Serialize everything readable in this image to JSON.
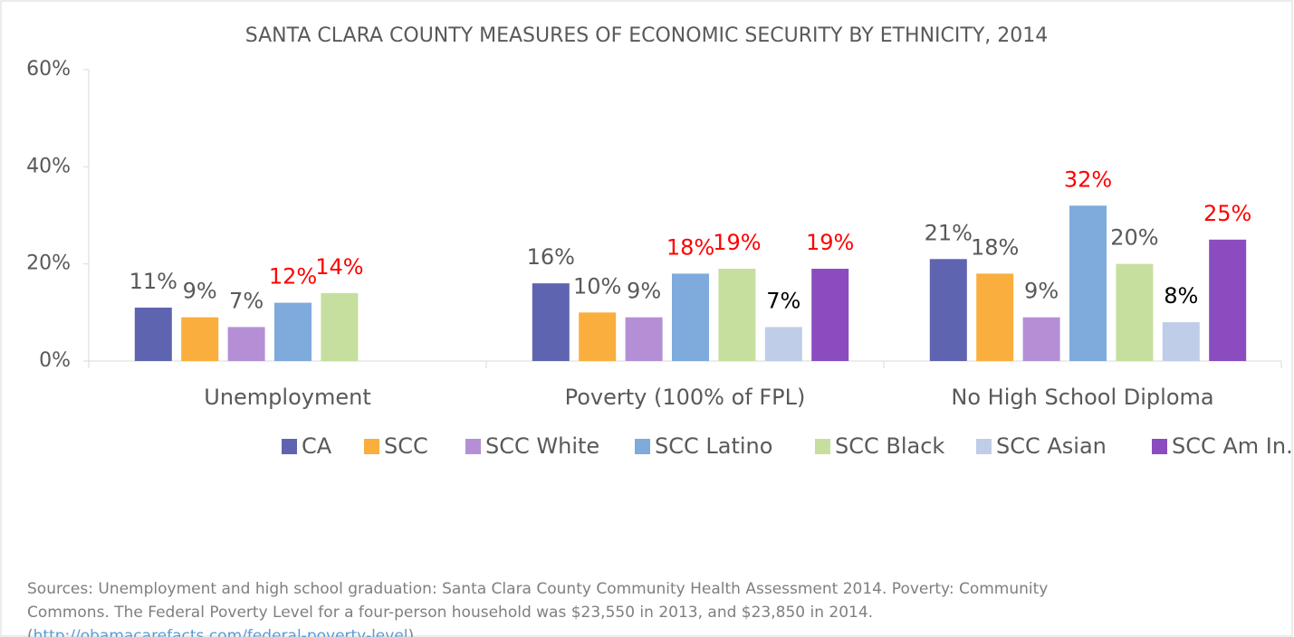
{
  "chart_data": {
    "type": "bar",
    "title": "SANTA CLARA COUNTY MEASURES OF ECONOMIC SECURITY BY ETHNICITY, 2014",
    "categories": [
      "Unemployment",
      "Poverty (100% of FPL)",
      "No High School Diploma"
    ],
    "series": [
      {
        "name": "CA",
        "color": "#5f64b0",
        "values": [
          11,
          16,
          21
        ],
        "value_labels": [
          "11%",
          "16%",
          "21%"
        ],
        "label_colors": [
          "#595959",
          "#595959",
          "#595959"
        ]
      },
      {
        "name": "SCC",
        "color": "#f9ae3d",
        "values": [
          9,
          10,
          18
        ],
        "value_labels": [
          "9%",
          "10%",
          "18%"
        ],
        "label_colors": [
          "#595959",
          "#595959",
          "#595959"
        ]
      },
      {
        "name": "SCC White",
        "color": "#b58fd6",
        "values": [
          7,
          9,
          9
        ],
        "value_labels": [
          "7%",
          "9%",
          "9%"
        ],
        "label_colors": [
          "#595959",
          "#595959",
          "#595959"
        ]
      },
      {
        "name": "SCC Latino",
        "color": "#7eaadc",
        "values": [
          12,
          18,
          32
        ],
        "value_labels": [
          "12%",
          "18%",
          "32%"
        ],
        "label_colors": [
          "#ff0000",
          "#ff0000",
          "#ff0000"
        ]
      },
      {
        "name": "SCC Black",
        "color": "#c6df9f",
        "values": [
          14,
          19,
          20
        ],
        "value_labels": [
          "14%",
          "19%",
          "20%"
        ],
        "label_colors": [
          "#ff0000",
          "#ff0000",
          "#595959"
        ]
      },
      {
        "name": "SCC Asian",
        "color": "#c0cde8",
        "values": [
          null,
          7,
          8
        ],
        "value_labels": [
          null,
          "7%",
          "8%"
        ],
        "label_colors": [
          null,
          "#000000",
          "#000000"
        ]
      },
      {
        "name": "SCC Am In.",
        "color": "#8b4cc0",
        "values": [
          null,
          19,
          25
        ],
        "value_labels": [
          null,
          "19%",
          "25%"
        ],
        "label_colors": [
          null,
          "#ff0000",
          "#ff0000"
        ]
      }
    ],
    "ylim": [
      0,
      60
    ],
    "yticks": [
      {
        "value": 0,
        "label": "0%"
      },
      {
        "value": 20,
        "label": "20%"
      },
      {
        "value": 40,
        "label": "40%"
      },
      {
        "value": 60,
        "label": "60%"
      }
    ],
    "grid": false,
    "legend": "bottom",
    "note_lines": [
      "Sources: Unemployment and high school graduation: Santa Clara County Community Health Assessment 2014. Poverty: Community",
      "Commons. The Federal Poverty Level for a four-person household was $23,550 in 2013, and $23,850 in 2014."
    ],
    "note_link": {
      "before": "(",
      "text": "http://obamacarefacts.com/federal-poverty-level",
      "after": ")."
    }
  }
}
